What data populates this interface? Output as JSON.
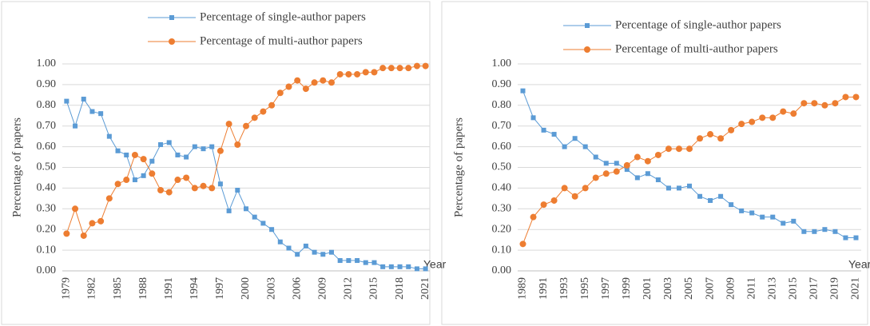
{
  "chart_data": [
    {
      "type": "line",
      "y_label": "Percentage of papers",
      "x_label": "Year",
      "categories": [
        "1979",
        null,
        null,
        "1982",
        null,
        null,
        "1985",
        null,
        null,
        "1988",
        null,
        null,
        "1991",
        null,
        null,
        "1994",
        null,
        null,
        "1997",
        null,
        null,
        "2000",
        null,
        null,
        "2003",
        null,
        null,
        "2006",
        null,
        null,
        "2009",
        null,
        null,
        "2012",
        null,
        null,
        "2015",
        null,
        null,
        "2018",
        null,
        null,
        "2021"
      ],
      "series": [
        {
          "name": "Percentage of single-author papers",
          "color": "#5b9bd5",
          "marker": "square",
          "values": [
            0.82,
            0.7,
            0.83,
            0.77,
            0.76,
            0.65,
            0.58,
            0.56,
            0.44,
            0.46,
            0.53,
            0.61,
            0.62,
            0.56,
            0.55,
            0.6,
            0.59,
            0.6,
            0.42,
            0.29,
            0.39,
            0.3,
            0.26,
            0.23,
            0.2,
            0.14,
            0.11,
            0.08,
            0.12,
            0.09,
            0.08,
            0.09,
            0.05,
            0.05,
            0.05,
            0.04,
            0.04,
            0.02,
            0.02,
            0.02,
            0.02,
            0.01,
            0.01
          ]
        },
        {
          "name": "Percentage of multi-author papers",
          "color": "#ed7d31",
          "marker": "circle",
          "values": [
            0.18,
            0.3,
            0.17,
            0.23,
            0.24,
            0.35,
            0.42,
            0.44,
            0.56,
            0.54,
            0.47,
            0.39,
            0.38,
            0.44,
            0.45,
            0.4,
            0.41,
            0.4,
            0.58,
            0.71,
            0.61,
            0.7,
            0.74,
            0.77,
            0.8,
            0.86,
            0.89,
            0.92,
            0.88,
            0.91,
            0.92,
            0.91,
            0.95,
            0.95,
            0.95,
            0.96,
            0.96,
            0.98,
            0.98,
            0.98,
            0.98,
            0.99,
            0.99
          ]
        }
      ],
      "ylim": [
        0,
        1
      ],
      "yticks": [
        {
          "value": 0,
          "label": "0.00"
        },
        {
          "value": 0.1,
          "label": "0.10"
        },
        {
          "value": 0.2,
          "label": "0.20"
        },
        {
          "value": 0.3,
          "label": "0.30"
        },
        {
          "value": 0.4,
          "label": "0.40"
        },
        {
          "value": 0.5,
          "label": "0.50"
        },
        {
          "value": 0.6,
          "label": "0.60"
        },
        {
          "value": 0.7,
          "label": "0.70"
        },
        {
          "value": 0.8,
          "label": "0.80"
        },
        {
          "value": 0.9,
          "label": "0.90"
        },
        {
          "value": 1,
          "label": "1.00"
        }
      ],
      "grid": true,
      "legend": "top"
    },
    {
      "type": "line",
      "y_label": "Percentage of papers",
      "x_label": "Year",
      "categories": [
        "1989",
        null,
        "1991",
        null,
        "1993",
        null,
        "1995",
        null,
        "1997",
        null,
        "1999",
        null,
        "2001",
        null,
        "2003",
        null,
        "2005",
        null,
        "2007",
        null,
        "2009",
        null,
        "2011",
        null,
        "2013",
        null,
        "2015",
        null,
        "2017",
        null,
        "2019",
        null,
        "2021"
      ],
      "series": [
        {
          "name": "Percentage of single-author papers",
          "color": "#5b9bd5",
          "marker": "square",
          "values": [
            0.87,
            0.74,
            0.68,
            0.66,
            0.6,
            0.64,
            0.6,
            0.55,
            0.52,
            0.52,
            0.49,
            0.45,
            0.47,
            0.44,
            0.4,
            0.4,
            0.41,
            0.36,
            0.34,
            0.36,
            0.32,
            0.29,
            0.28,
            0.26,
            0.26,
            0.23,
            0.24,
            0.19,
            0.19,
            0.2,
            0.19,
            0.16,
            0.16
          ]
        },
        {
          "name": "Percentage of multi-author papers",
          "color": "#ed7d31",
          "marker": "circle",
          "values": [
            0.13,
            0.26,
            0.32,
            0.34,
            0.4,
            0.36,
            0.4,
            0.45,
            0.47,
            0.48,
            0.51,
            0.55,
            0.53,
            0.56,
            0.59,
            0.59,
            0.59,
            0.64,
            0.66,
            0.64,
            0.68,
            0.71,
            0.72,
            0.74,
            0.74,
            0.77,
            0.76,
            0.81,
            0.81,
            0.8,
            0.81,
            0.84,
            0.84
          ]
        }
      ],
      "ylim": [
        0,
        1
      ],
      "yticks": [
        {
          "value": 0,
          "label": "0.00"
        },
        {
          "value": 0.1,
          "label": "0.10"
        },
        {
          "value": 0.2,
          "label": "0.20"
        },
        {
          "value": 0.3,
          "label": "0.30"
        },
        {
          "value": 0.4,
          "label": "0.40"
        },
        {
          "value": 0.5,
          "label": "0.50"
        },
        {
          "value": 0.6,
          "label": "0.60"
        },
        {
          "value": 0.7,
          "label": "0.70"
        },
        {
          "value": 0.8,
          "label": "0.80"
        },
        {
          "value": 0.9,
          "label": "0.90"
        },
        {
          "value": 1,
          "label": "1.00"
        }
      ],
      "grid": true,
      "legend": "top"
    }
  ]
}
